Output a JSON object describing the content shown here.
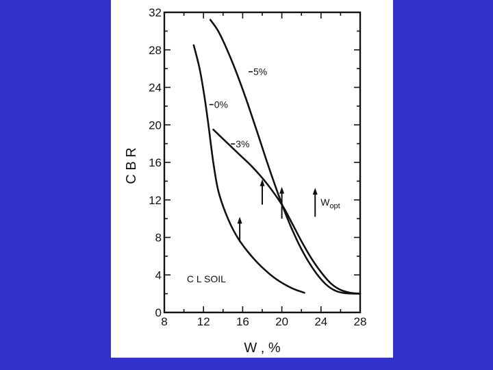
{
  "colors": {
    "background": "#3333cc",
    "panel": "#ffffff",
    "ink": "#111111"
  },
  "chart_data": {
    "type": "line",
    "title": "",
    "xlabel": "W , %",
    "ylabel": "C B R",
    "xlim": [
      8,
      28
    ],
    "ylim": [
      0,
      32
    ],
    "x_ticks": [
      8,
      12,
      16,
      20,
      24,
      28
    ],
    "y_ticks": [
      0,
      4,
      8,
      12,
      16,
      20,
      24,
      28,
      32
    ],
    "grid": false,
    "series": [
      {
        "name": "0%",
        "points": [
          [
            11.0,
            28.5
          ],
          [
            11.6,
            26.0
          ],
          [
            12.1,
            23.0
          ],
          [
            12.5,
            20.0
          ],
          [
            13.0,
            16.0
          ],
          [
            13.5,
            13.0
          ],
          [
            14.3,
            10.5
          ],
          [
            15.3,
            8.3
          ],
          [
            16.5,
            6.5
          ],
          [
            18.0,
            4.8
          ],
          [
            19.5,
            3.5
          ],
          [
            21.0,
            2.6
          ],
          [
            22.3,
            2.1
          ]
        ]
      },
      {
        "name": "3%",
        "points": [
          [
            13.0,
            19.5
          ],
          [
            14.0,
            18.5
          ],
          [
            15.5,
            17.0
          ],
          [
            17.0,
            15.5
          ],
          [
            18.5,
            13.7
          ],
          [
            20.0,
            11.5
          ],
          [
            21.0,
            9.6
          ],
          [
            22.0,
            7.6
          ],
          [
            23.0,
            5.8
          ],
          [
            24.0,
            4.3
          ],
          [
            25.0,
            3.1
          ],
          [
            26.0,
            2.4
          ],
          [
            27.0,
            2.1
          ],
          [
            28.0,
            2.0
          ]
        ]
      },
      {
        "name": "5%",
        "points": [
          [
            12.7,
            31.2
          ],
          [
            13.5,
            30.0
          ],
          [
            14.5,
            27.8
          ],
          [
            15.5,
            25.2
          ],
          [
            16.5,
            22.3
          ],
          [
            17.5,
            19.2
          ],
          [
            18.5,
            16.0
          ],
          [
            19.5,
            13.0
          ],
          [
            20.5,
            10.2
          ],
          [
            21.5,
            7.8
          ],
          [
            22.5,
            5.8
          ],
          [
            23.5,
            4.2
          ],
          [
            24.5,
            3.0
          ],
          [
            25.5,
            2.3
          ],
          [
            26.5,
            2.05
          ],
          [
            28.0,
            2.0
          ]
        ]
      }
    ],
    "series_labels": [
      {
        "series": "5%",
        "text": "5%",
        "x": 16.6,
        "y": 25.3
      },
      {
        "series": "0%",
        "text": "0%",
        "x": 12.6,
        "y": 21.8
      },
      {
        "series": "3%",
        "text": "3%",
        "x": 14.8,
        "y": 17.6
      }
    ],
    "optimum_arrows": [
      {
        "x": 15.7,
        "y_from": 7.5,
        "y_to": 10.2
      },
      {
        "x": 18.0,
        "y_from": 11.5,
        "y_to": 14.2
      },
      {
        "x": 20.0,
        "y_from": 10.0,
        "y_to": 13.4
      }
    ],
    "legend_arrow": {
      "x": 23.4,
      "y_from": 10.2,
      "y_to": 13.3,
      "text": "W",
      "subtext": "opt"
    },
    "annotation": {
      "text": "C L SOIL",
      "x": 10.3,
      "y": 3.2
    }
  }
}
